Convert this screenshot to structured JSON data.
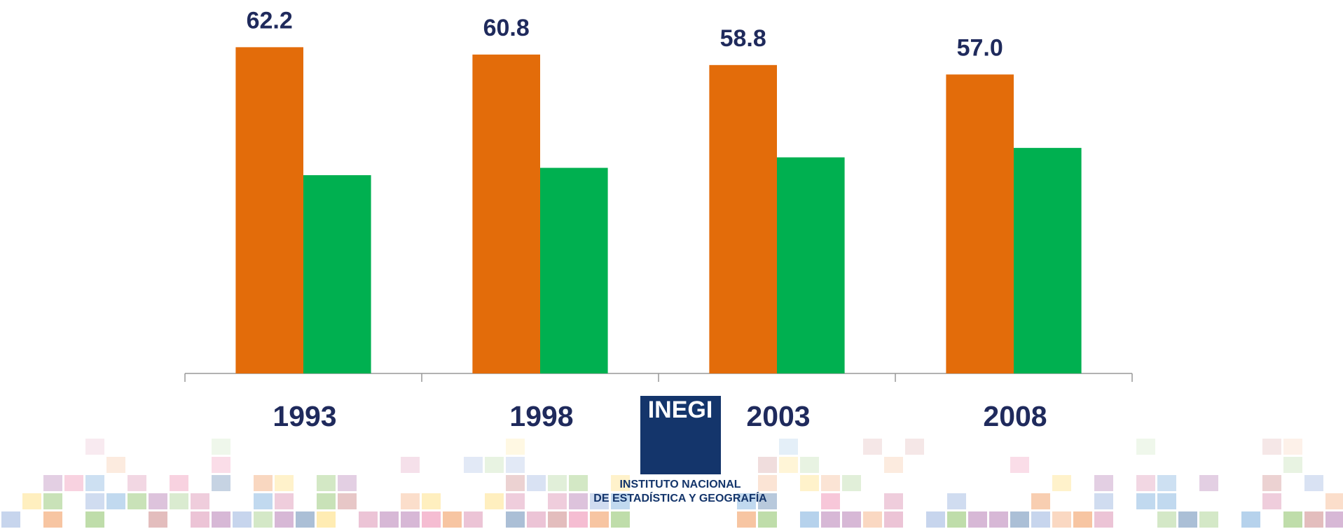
{
  "chart_data": {
    "type": "bar",
    "categories": [
      "1993",
      "1998",
      "2003",
      "2008"
    ],
    "series": [
      {
        "color": "#e36c0a",
        "values": [
          62.2,
          60.8,
          58.8,
          57.0
        ],
        "value_labels": [
          "62.2",
          "60.8",
          "58.8",
          "57.0"
        ]
      },
      {
        "color": "#00b050",
        "values": [
          37.8,
          39.2,
          41.2,
          43.0
        ]
      }
    ],
    "ylim": [
      0,
      71.2
    ]
  },
  "logo": {
    "mark": "INEGI",
    "line1": "INSTITUTO NACIONAL",
    "line2": "DE ESTADÍSTICA Y GEOGRAFÍA"
  }
}
